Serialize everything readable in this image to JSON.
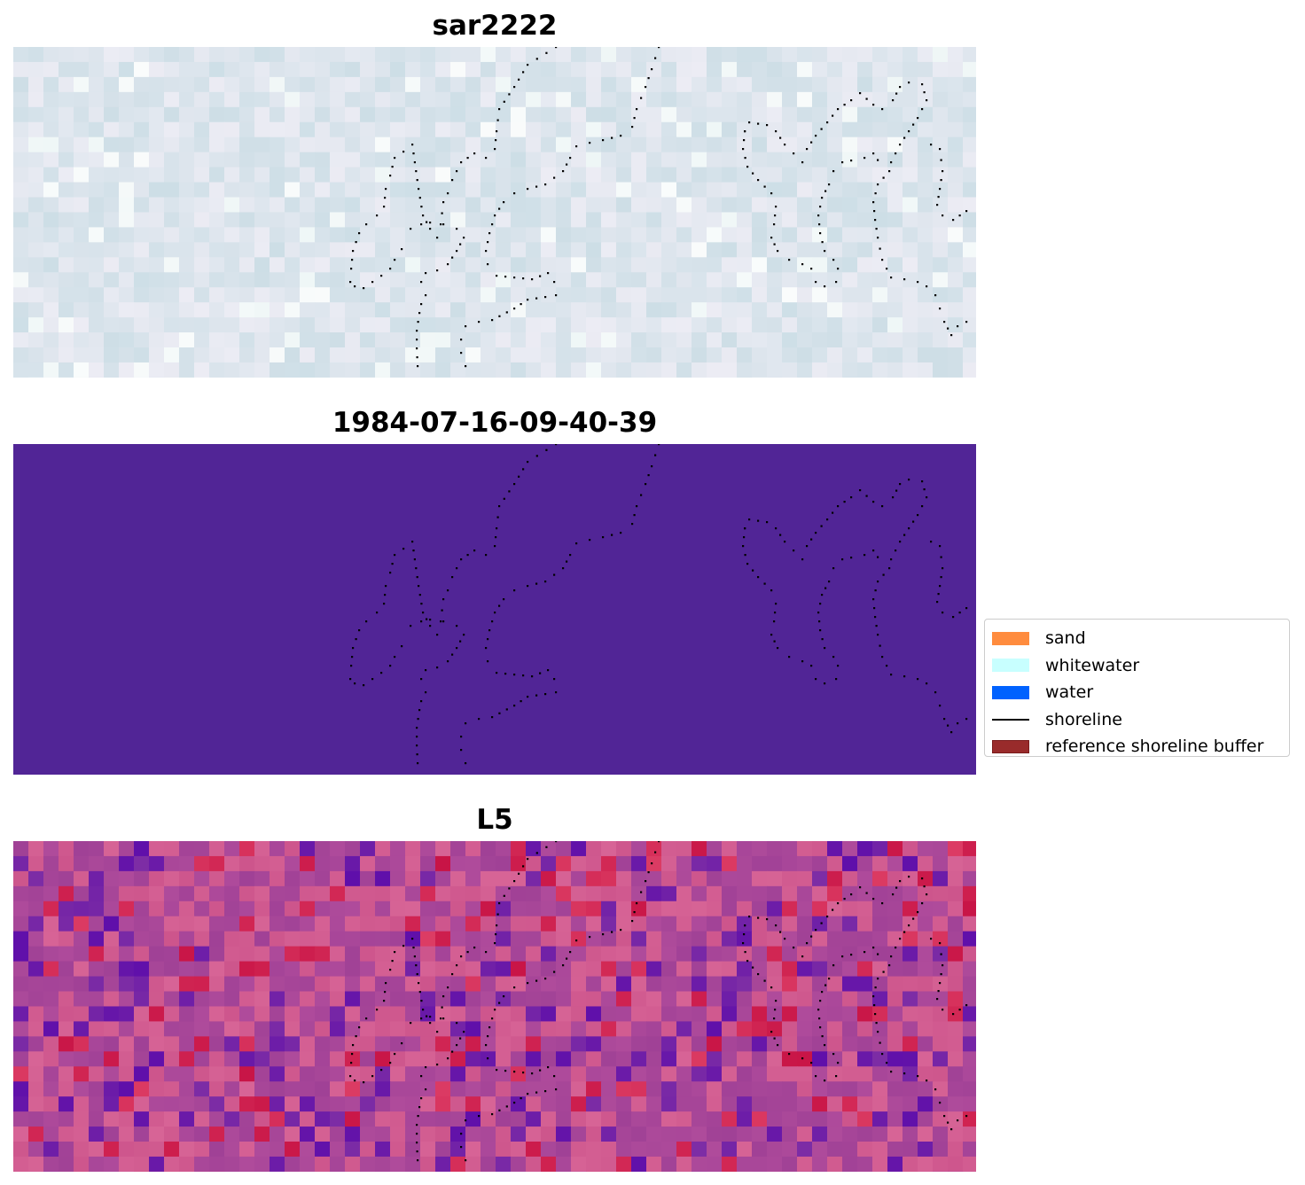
{
  "panels": [
    {
      "title": "sar2222",
      "style": "sar"
    },
    {
      "title": "1984-07-16-09-40-39",
      "style": "class",
      "fill": "#512596"
    },
    {
      "title": "L5",
      "style": "l5"
    }
  ],
  "legend": {
    "items": [
      {
        "label": "sand",
        "color": "#ff8c3e",
        "kind": "patch"
      },
      {
        "label": "whitewater",
        "color": "#c8ffff",
        "kind": "patch"
      },
      {
        "label": "water",
        "color": "#0062ff",
        "kind": "patch"
      },
      {
        "label": "shoreline",
        "color": "#000000",
        "kind": "line"
      },
      {
        "label": "reference shoreline buffer",
        "color": "#992b2b",
        "kind": "patch"
      }
    ]
  }
}
